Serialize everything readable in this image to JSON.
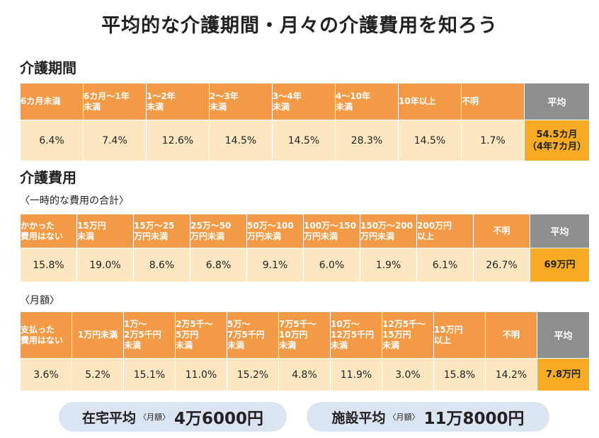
{
  "title": "平均的な介護期間・月々の介護費用を知ろう",
  "period": {
    "heading": "介護期間",
    "headers": [
      "6カ月未満",
      "6カ月〜1年\n未満",
      "1〜2年\n未満",
      "2〜3年\n未満",
      "3〜4年\n未満",
      "4〜10年\n未満",
      "10年以上",
      "不明"
    ],
    "values": [
      "6.4%",
      "7.4%",
      "12.6%",
      "14.5%",
      "14.5%",
      "28.3%",
      "14.5%",
      "1.7%"
    ],
    "average_label": "平均",
    "average_value": "54.5カ月\n（4年7カ月）"
  },
  "cost": {
    "heading": "介護費用",
    "one_time": {
      "label": "〈一時的な費用の合計〉",
      "headers": [
        "かかった\n費用はない",
        "15万円\n未満",
        "15万〜25\n万円未満",
        "25万〜50\n万円未満",
        "50万〜100\n万円未満",
        "100万〜150\n万円未満",
        "150万〜200\n万円未満",
        "200万円\n以上",
        "不明"
      ],
      "values": [
        "15.8%",
        "19.0%",
        "8.6%",
        "6.8%",
        "9.1%",
        "6.0%",
        "1.9%",
        "6.1%",
        "26.7%"
      ],
      "average_label": "平均",
      "average_value": "69万円"
    },
    "monthly": {
      "label": "〈月額〉",
      "headers": [
        "支払った\n費用はない",
        "1万円未満",
        "1万〜\n2万5千円\n未満",
        "2万5千〜\n5万円\n未満",
        "5万〜\n7万5千円\n未満",
        "7万5千〜\n10万円\n未満",
        "10万〜\n12万5千円\n未満",
        "12万5千〜\n15万円\n未満",
        "15万円\n以上",
        "不明"
      ],
      "values": [
        "3.6%",
        "5.2%",
        "15.1%",
        "11.0%",
        "15.2%",
        "4.8%",
        "11.9%",
        "3.0%",
        "15.8%",
        "14.2%"
      ],
      "average_label": "平均",
      "average_value": "7.8万円"
    }
  },
  "summary": {
    "home": {
      "label": "在宅平均",
      "sub": "〈月額〉",
      "value": "4万6000円"
    },
    "facility": {
      "label": "施設平均",
      "sub": "〈月額〉",
      "value": "11万8000円"
    }
  },
  "colors": {
    "header_orange": "#f29a45",
    "value_cream": "#fde7c0",
    "average_header_gray": "#8e8e8e",
    "average_value_orange": "#f6ab23",
    "average_border_red": "#d9262e",
    "pill_blue": "#dbe5f1"
  }
}
